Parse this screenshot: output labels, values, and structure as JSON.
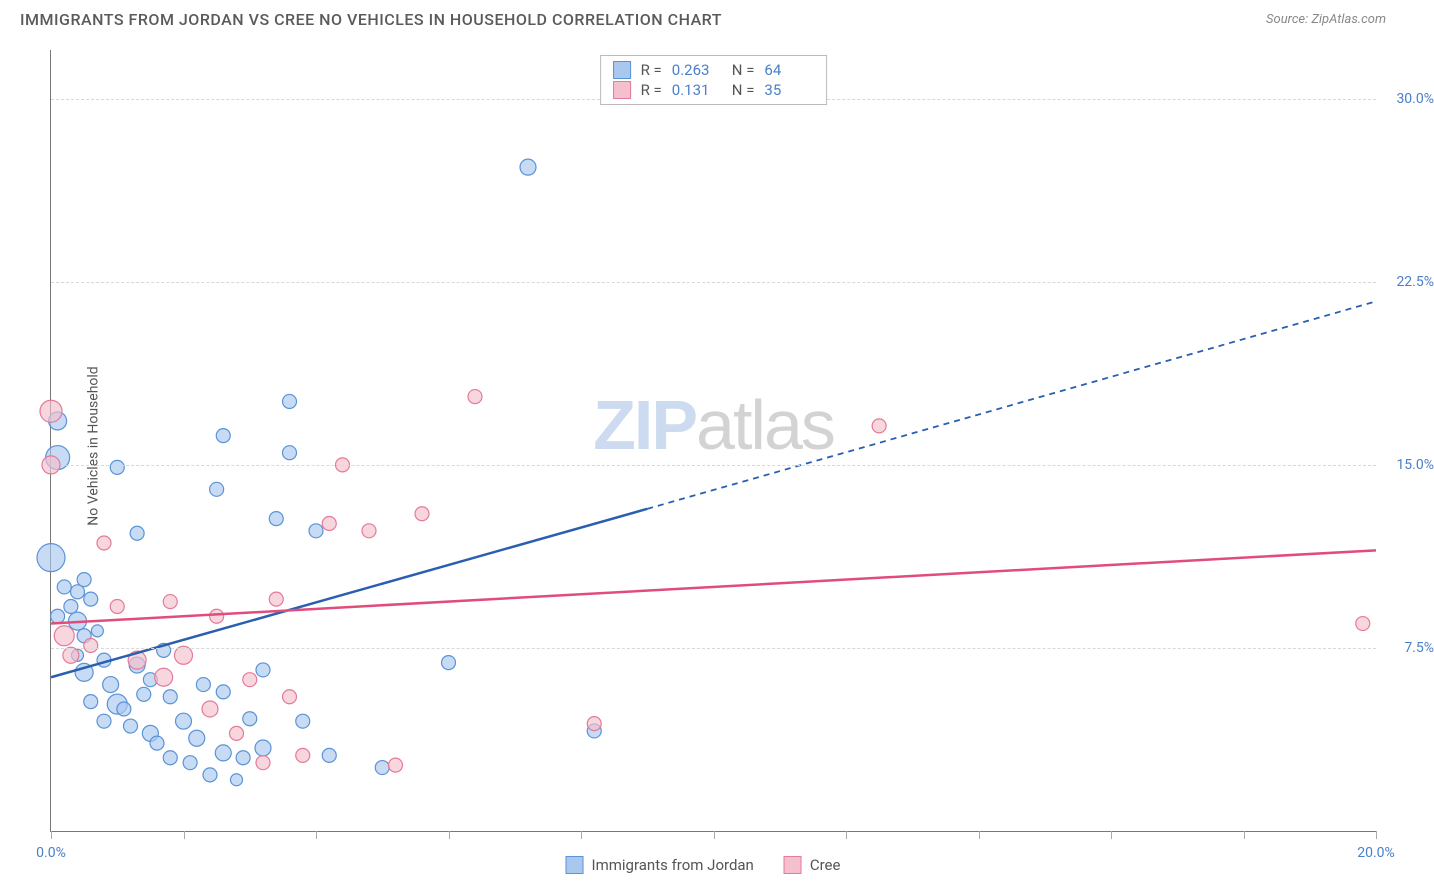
{
  "header": {
    "title": "IMMIGRANTS FROM JORDAN VS CREE NO VEHICLES IN HOUSEHOLD CORRELATION CHART",
    "source_label": "Source:",
    "source_name": "ZipAtlas.com"
  },
  "chart": {
    "type": "scatter",
    "ylabel": "No Vehicles in Household",
    "xlim": [
      0,
      20
    ],
    "ylim": [
      0,
      32
    ],
    "x_ticks": [
      0,
      2,
      4,
      6,
      8,
      10,
      12,
      14,
      16,
      18,
      20
    ],
    "x_labels": [
      {
        "v": 0,
        "t": "0.0%"
      },
      {
        "v": 20,
        "t": "20.0%"
      }
    ],
    "y_gridlines": [
      7.5,
      15.0,
      22.5,
      30.0
    ],
    "y_labels": [
      {
        "v": 7.5,
        "t": "7.5%"
      },
      {
        "v": 15.0,
        "t": "15.0%"
      },
      {
        "v": 22.5,
        "t": "22.5%"
      },
      {
        "v": 30.0,
        "t": "30.0%"
      }
    ],
    "grid_color": "#d8d8d8",
    "background_color": "#ffffff",
    "series": [
      {
        "name": "Immigrants from Jordan",
        "color_fill": "#a9c8ef",
        "color_stroke": "#5a93d6",
        "r_value": "0.263",
        "n_value": "64",
        "trend": {
          "x1": 0,
          "y1": 6.3,
          "x2": 9.0,
          "y2": 13.2,
          "x2_ext": 20,
          "y2_ext": 21.7,
          "color": "#2a5fb0",
          "dash_from": 9.0
        },
        "points": [
          {
            "x": 0.1,
            "y": 15.3,
            "r": 12
          },
          {
            "x": 0.0,
            "y": 11.2,
            "r": 14
          },
          {
            "x": 0.1,
            "y": 16.8,
            "r": 9
          },
          {
            "x": 0.2,
            "y": 10.0,
            "r": 7
          },
          {
            "x": 0.3,
            "y": 9.2,
            "r": 7
          },
          {
            "x": 0.4,
            "y": 8.6,
            "r": 9
          },
          {
            "x": 0.5,
            "y": 8.0,
            "r": 7
          },
          {
            "x": 0.4,
            "y": 7.2,
            "r": 6
          },
          {
            "x": 0.6,
            "y": 9.5,
            "r": 7
          },
          {
            "x": 0.7,
            "y": 8.2,
            "r": 6
          },
          {
            "x": 0.5,
            "y": 6.5,
            "r": 9
          },
          {
            "x": 0.8,
            "y": 7.0,
            "r": 7
          },
          {
            "x": 0.9,
            "y": 6.0,
            "r": 8
          },
          {
            "x": 1.0,
            "y": 5.2,
            "r": 10
          },
          {
            "x": 1.1,
            "y": 5.0,
            "r": 7
          },
          {
            "x": 1.2,
            "y": 4.3,
            "r": 7
          },
          {
            "x": 1.3,
            "y": 6.8,
            "r": 8
          },
          {
            "x": 1.4,
            "y": 5.6,
            "r": 7
          },
          {
            "x": 1.5,
            "y": 4.0,
            "r": 8
          },
          {
            "x": 1.5,
            "y": 6.2,
            "r": 7
          },
          {
            "x": 1.6,
            "y": 3.6,
            "r": 7
          },
          {
            "x": 1.8,
            "y": 3.0,
            "r": 7
          },
          {
            "x": 1.8,
            "y": 5.5,
            "r": 7
          },
          {
            "x": 1.7,
            "y": 7.4,
            "r": 7
          },
          {
            "x": 2.0,
            "y": 4.5,
            "r": 8
          },
          {
            "x": 2.1,
            "y": 2.8,
            "r": 7
          },
          {
            "x": 2.2,
            "y": 3.8,
            "r": 8
          },
          {
            "x": 2.3,
            "y": 6.0,
            "r": 7
          },
          {
            "x": 2.4,
            "y": 2.3,
            "r": 7
          },
          {
            "x": 2.6,
            "y": 3.2,
            "r": 8
          },
          {
            "x": 2.6,
            "y": 5.7,
            "r": 7
          },
          {
            "x": 2.8,
            "y": 2.1,
            "r": 6
          },
          {
            "x": 2.9,
            "y": 3.0,
            "r": 7
          },
          {
            "x": 3.0,
            "y": 4.6,
            "r": 7
          },
          {
            "x": 3.2,
            "y": 3.4,
            "r": 8
          },
          {
            "x": 3.2,
            "y": 6.6,
            "r": 7
          },
          {
            "x": 3.4,
            "y": 12.8,
            "r": 7
          },
          {
            "x": 3.6,
            "y": 15.5,
            "r": 7
          },
          {
            "x": 1.0,
            "y": 14.9,
            "r": 7
          },
          {
            "x": 1.3,
            "y": 12.2,
            "r": 7
          },
          {
            "x": 2.5,
            "y": 14.0,
            "r": 7
          },
          {
            "x": 2.6,
            "y": 16.2,
            "r": 7
          },
          {
            "x": 0.5,
            "y": 10.3,
            "r": 7
          },
          {
            "x": 0.4,
            "y": 9.8,
            "r": 7
          },
          {
            "x": 0.1,
            "y": 8.8,
            "r": 7
          },
          {
            "x": 3.6,
            "y": 17.6,
            "r": 7
          },
          {
            "x": 4.0,
            "y": 12.3,
            "r": 7
          },
          {
            "x": 3.8,
            "y": 4.5,
            "r": 7
          },
          {
            "x": 4.2,
            "y": 3.1,
            "r": 7
          },
          {
            "x": 5.0,
            "y": 2.6,
            "r": 7
          },
          {
            "x": 6.0,
            "y": 6.9,
            "r": 7
          },
          {
            "x": 0.8,
            "y": 4.5,
            "r": 7
          },
          {
            "x": 0.6,
            "y": 5.3,
            "r": 7
          },
          {
            "x": 7.2,
            "y": 27.2,
            "r": 8
          },
          {
            "x": 8.2,
            "y": 4.1,
            "r": 7
          }
        ]
      },
      {
        "name": "Cree",
        "color_fill": "#f5c0cd",
        "color_stroke": "#e57a9a",
        "r_value": "0.131",
        "n_value": "35",
        "trend": {
          "x1": 0,
          "y1": 8.5,
          "x2": 20,
          "y2": 11.5,
          "color": "#e14d7b"
        },
        "points": [
          {
            "x": 0.0,
            "y": 17.2,
            "r": 11
          },
          {
            "x": 0.0,
            "y": 15.0,
            "r": 9
          },
          {
            "x": 0.2,
            "y": 8.0,
            "r": 10
          },
          {
            "x": 0.3,
            "y": 7.2,
            "r": 8
          },
          {
            "x": 0.6,
            "y": 7.6,
            "r": 7
          },
          {
            "x": 0.8,
            "y": 11.8,
            "r": 7
          },
          {
            "x": 1.0,
            "y": 9.2,
            "r": 7
          },
          {
            "x": 1.3,
            "y": 7.0,
            "r": 9
          },
          {
            "x": 1.7,
            "y": 6.3,
            "r": 9
          },
          {
            "x": 1.8,
            "y": 9.4,
            "r": 7
          },
          {
            "x": 2.0,
            "y": 7.2,
            "r": 9
          },
          {
            "x": 2.4,
            "y": 5.0,
            "r": 8
          },
          {
            "x": 2.5,
            "y": 8.8,
            "r": 7
          },
          {
            "x": 2.8,
            "y": 4.0,
            "r": 7
          },
          {
            "x": 3.0,
            "y": 6.2,
            "r": 7
          },
          {
            "x": 3.2,
            "y": 2.8,
            "r": 7
          },
          {
            "x": 3.4,
            "y": 9.5,
            "r": 7
          },
          {
            "x": 3.6,
            "y": 5.5,
            "r": 7
          },
          {
            "x": 3.8,
            "y": 3.1,
            "r": 7
          },
          {
            "x": 4.2,
            "y": 12.6,
            "r": 7
          },
          {
            "x": 4.4,
            "y": 15.0,
            "r": 7
          },
          {
            "x": 4.8,
            "y": 12.3,
            "r": 7
          },
          {
            "x": 5.2,
            "y": 2.7,
            "r": 7
          },
          {
            "x": 5.6,
            "y": 13.0,
            "r": 7
          },
          {
            "x": 6.4,
            "y": 17.8,
            "r": 7
          },
          {
            "x": 8.2,
            "y": 4.4,
            "r": 7
          },
          {
            "x": 12.5,
            "y": 16.6,
            "r": 7
          },
          {
            "x": 19.8,
            "y": 8.5,
            "r": 7
          }
        ]
      }
    ]
  },
  "legend_bottom": [
    {
      "label": "Immigrants from Jordan",
      "fill": "#a9c8ef",
      "stroke": "#5a93d6"
    },
    {
      "label": "Cree",
      "fill": "#f5c0cd",
      "stroke": "#e57a9a"
    }
  ],
  "watermark": {
    "part1": "ZIP",
    "part2": "atlas"
  }
}
